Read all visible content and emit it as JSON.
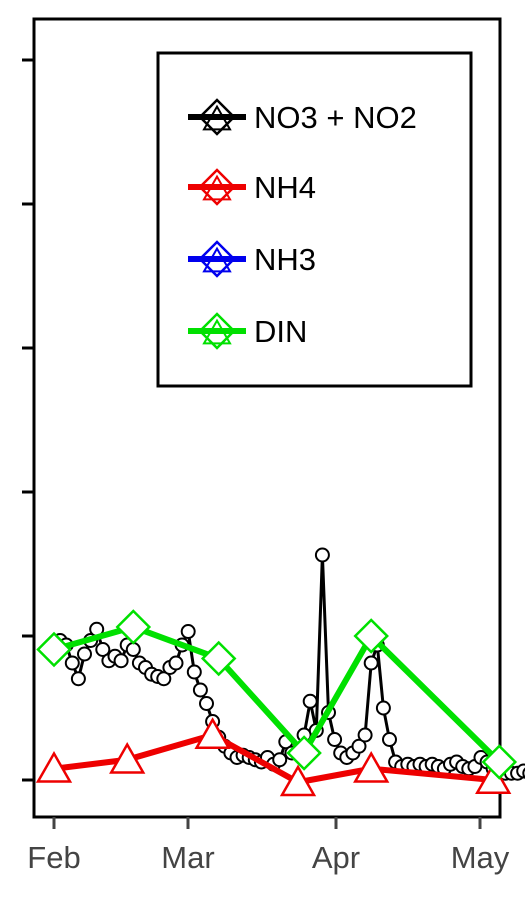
{
  "chart_data": {
    "type": "line",
    "x_ticks": [
      "Feb",
      "Mar",
      "Apr",
      "May"
    ],
    "grid": false,
    "legend_position": "top-right",
    "series": [
      {
        "name": "NO3 + NO2",
        "color": "#000000",
        "marker": "circle",
        "points": [
          [
            1,
            0.55
          ],
          [
            2,
            0.62
          ],
          [
            3,
            0.6
          ],
          [
            4,
            0.52
          ],
          [
            5,
            0.45
          ],
          [
            6,
            0.56
          ],
          [
            7,
            0.62
          ],
          [
            8,
            0.67
          ],
          [
            9,
            0.58
          ],
          [
            10,
            0.53
          ],
          [
            11,
            0.55
          ],
          [
            12,
            0.53
          ],
          [
            13,
            0.6
          ],
          [
            14,
            0.58
          ],
          [
            15,
            0.52
          ],
          [
            16,
            0.5
          ],
          [
            17,
            0.47
          ],
          [
            18,
            0.46
          ],
          [
            19,
            0.45
          ],
          [
            20,
            0.5
          ],
          [
            21,
            0.52
          ],
          [
            22,
            0.6
          ],
          [
            23,
            0.66
          ],
          [
            24,
            0.48
          ],
          [
            25,
            0.4
          ],
          [
            26,
            0.34
          ],
          [
            27,
            0.26
          ],
          [
            28,
            0.19
          ],
          [
            29,
            0.15
          ],
          [
            30,
            0.12
          ],
          [
            31,
            0.1
          ],
          [
            32,
            0.11
          ],
          [
            33,
            0.1
          ],
          [
            34,
            0.09
          ],
          [
            35,
            0.08
          ],
          [
            36,
            0.1
          ],
          [
            37,
            0.07
          ],
          [
            38,
            0.09
          ],
          [
            39,
            0.17
          ],
          [
            40,
            0.12
          ],
          [
            41,
            0.12
          ],
          [
            42,
            0.2
          ],
          [
            43,
            0.35
          ],
          [
            44,
            0.22
          ],
          [
            45,
            1.0
          ],
          [
            46,
            0.3
          ],
          [
            47,
            0.18
          ],
          [
            48,
            0.12
          ],
          [
            49,
            0.1
          ],
          [
            50,
            0.12
          ],
          [
            51,
            0.15
          ],
          [
            52,
            0.2
          ],
          [
            53,
            0.52
          ],
          [
            54,
            0.6
          ],
          [
            55,
            0.32
          ],
          [
            56,
            0.18
          ],
          [
            57,
            0.08
          ],
          [
            58,
            0.06
          ],
          [
            59,
            0.07
          ],
          [
            60,
            0.06
          ],
          [
            61,
            0.07
          ],
          [
            62,
            0.06
          ],
          [
            63,
            0.07
          ],
          [
            64,
            0.06
          ],
          [
            65,
            0.05
          ],
          [
            66,
            0.07
          ],
          [
            67,
            0.08
          ],
          [
            68,
            0.06
          ],
          [
            69,
            0.05
          ],
          [
            70,
            0.06
          ],
          [
            71,
            0.1
          ],
          [
            72,
            0.08
          ],
          [
            73,
            0.05
          ],
          [
            74,
            0.04
          ],
          [
            75,
            0.03
          ],
          [
            76,
            0.03
          ],
          [
            77,
            0.03
          ],
          [
            78,
            0.04
          ],
          [
            79,
            0.03
          ],
          [
            80,
            0.03
          ],
          [
            81,
            0.04
          ],
          [
            82,
            0.05
          ],
          [
            83,
            0.05
          ],
          [
            84,
            0.06
          ],
          [
            85,
            0.06
          ],
          [
            86,
            0.05
          ],
          [
            87,
            0.05
          ]
        ]
      },
      {
        "name": "NH4",
        "color": "#ee0000",
        "marker": "triangle",
        "points": [
          [
            1,
            0.05
          ],
          [
            13,
            0.09
          ],
          [
            27,
            0.2
          ],
          [
            41,
            -0.01
          ],
          [
            53,
            0.05
          ],
          [
            73,
            0.0
          ]
        ]
      },
      {
        "name": "NH3",
        "color": "#0000ee",
        "marker": "diamond",
        "points": []
      },
      {
        "name": "DIN",
        "color": "#00e000",
        "marker": "diamond",
        "points": [
          [
            1,
            0.58
          ],
          [
            14,
            0.68
          ],
          [
            28,
            0.54
          ],
          [
            42,
            0.12
          ],
          [
            53,
            0.64
          ],
          [
            74,
            0.08
          ]
        ]
      }
    ]
  }
}
